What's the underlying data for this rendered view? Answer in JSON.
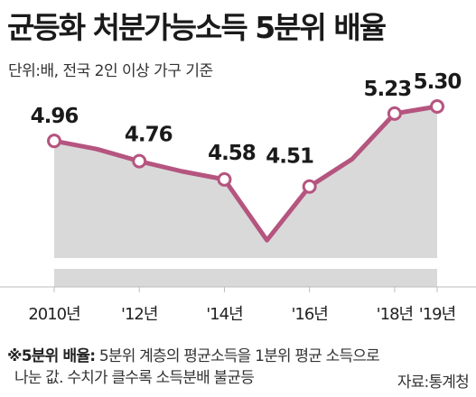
{
  "title": "균등화 처분가능소득 5분위 배율",
  "subtitle": "단위:배, 전국 2인 이상 가구 기준",
  "footnote": {
    "key": "※5분위 배율:",
    "line1_rest": " 5분위 계층의 평균소득을 1분위 평균 소득으로",
    "line2": "나눈 값. 수치가 클수록 소득분배 불균등"
  },
  "source": "자료:통계청",
  "chart_data": {
    "type": "line",
    "x": [
      2010,
      2011,
      2012,
      2013,
      2014,
      2015,
      2016,
      2017,
      2018,
      2019
    ],
    "values": [
      4.96,
      4.88,
      4.76,
      4.66,
      4.58,
      3.98,
      4.51,
      4.78,
      5.23,
      5.3
    ],
    "data_labels": [
      {
        "x": 2010,
        "text": "4.96"
      },
      {
        "x": 2012,
        "text": "4.76"
      },
      {
        "x": 2014,
        "text": "4.58"
      },
      {
        "x": 2016,
        "text": "4.51"
      },
      {
        "x": 2018,
        "text": "5.23"
      },
      {
        "x": 2019,
        "text": "5.30"
      }
    ],
    "markers_at": [
      2010,
      2012,
      2014,
      2016,
      2018,
      2019
    ],
    "tick_labels": [
      {
        "x": 2010,
        "text": "2010년"
      },
      {
        "x": 2012,
        "text": "'12년"
      },
      {
        "x": 2014,
        "text": "'14년"
      },
      {
        "x": 2016,
        "text": "'16년"
      },
      {
        "x": 2018,
        "text": "'18년"
      },
      {
        "x": 2019,
        "text": "'19년"
      }
    ],
    "axis_break": true,
    "colors": {
      "line": "#b5557f",
      "area": "#d9d9d9",
      "marker_fill": "#ffffff",
      "baseline": "#bdbdbd"
    }
  }
}
